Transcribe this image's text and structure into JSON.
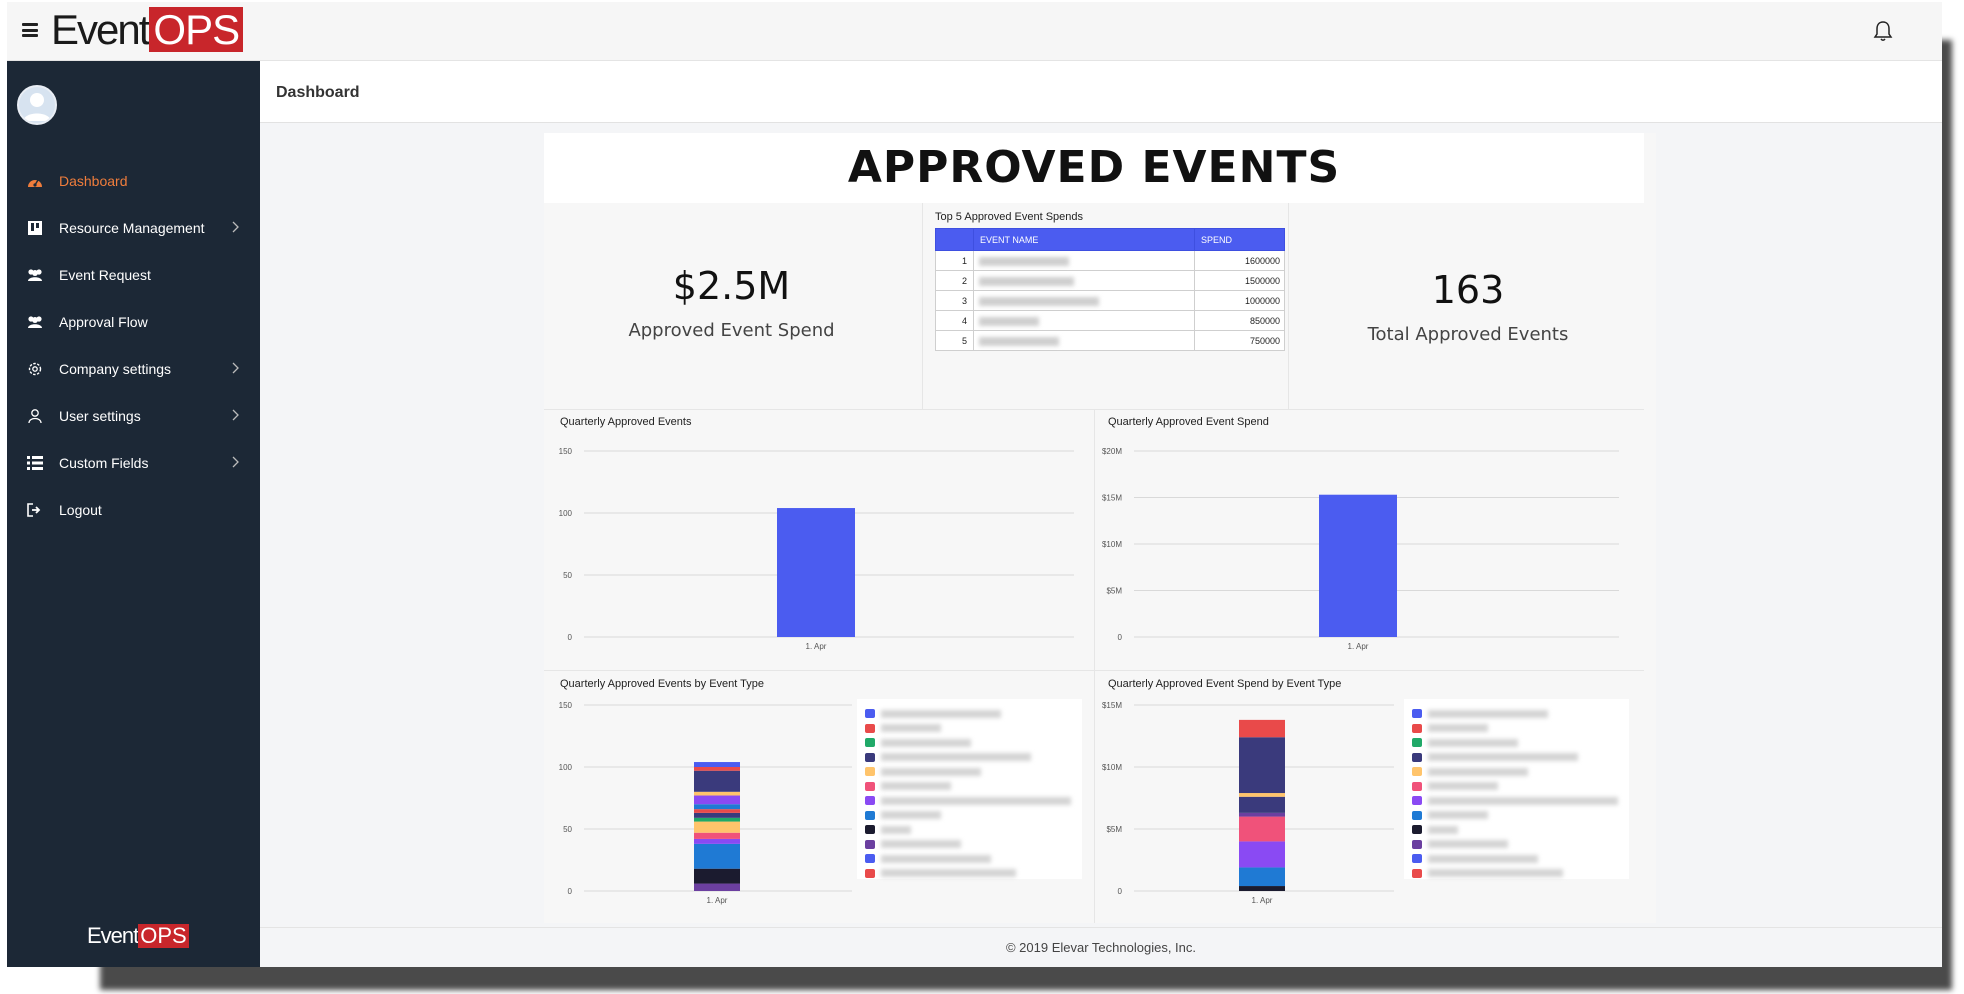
{
  "app": {
    "logo_event": "Event",
    "logo_ops": "OPS",
    "page_title": "Dashboard",
    "footer": "© 2019 Elevar Technologies, Inc."
  },
  "sidebar": {
    "items": [
      {
        "label": "Dashboard",
        "icon": "dashboard-icon",
        "active": true,
        "chevron": false
      },
      {
        "label": "Resource Management",
        "icon": "board-icon",
        "active": false,
        "chevron": true
      },
      {
        "label": "Event Request",
        "icon": "users-icon",
        "active": false,
        "chevron": false
      },
      {
        "label": "Approval Flow",
        "icon": "users-icon",
        "active": false,
        "chevron": false
      },
      {
        "label": "Company settings",
        "icon": "gear-icon",
        "active": false,
        "chevron": true
      },
      {
        "label": "User settings",
        "icon": "user-icon",
        "active": false,
        "chevron": true
      },
      {
        "label": "Custom Fields",
        "icon": "list-icon",
        "active": false,
        "chevron": true
      },
      {
        "label": "Logout",
        "icon": "logout-icon",
        "active": false,
        "chevron": false
      }
    ]
  },
  "report": {
    "title": "APPROVED EVENTS",
    "kpi_spend": {
      "value": "$2.5M",
      "label": "Approved Event Spend"
    },
    "kpi_total": {
      "value": "163",
      "label": "Total Approved Events"
    },
    "top5": {
      "caption": "Top 5 Approved Event Spends",
      "headers": [
        "",
        "EVENT NAME",
        "SPEND"
      ],
      "rows": [
        {
          "rank": "1",
          "spend": "1600000"
        },
        {
          "rank": "2",
          "spend": "1500000"
        },
        {
          "rank": "3",
          "spend": "1000000"
        },
        {
          "rank": "4",
          "spend": "850000"
        },
        {
          "rank": "5",
          "spend": "750000"
        }
      ]
    },
    "colors": {
      "accent": "#4b5cf0",
      "active_nav": "#ef7d3c",
      "sidebar_bg": "#1c2836",
      "logo_red": "#c8262b"
    }
  },
  "chart_data": [
    {
      "type": "bar",
      "title": "Quarterly Approved Events",
      "categories": [
        "1. Apr"
      ],
      "values": [
        104
      ],
      "ylim": [
        0,
        150
      ],
      "yticks": [
        "0",
        "50",
        "100",
        "150"
      ],
      "color": "#4b5cf0",
      "grid": true
    },
    {
      "type": "bar",
      "title": "Quarterly Approved Event Spend",
      "categories": [
        "1. Apr"
      ],
      "values": [
        15.3
      ],
      "ylim": [
        0,
        20
      ],
      "yticks": [
        "0",
        "$5M",
        "$10M",
        "$15M",
        "$20M"
      ],
      "color": "#4b5cf0",
      "grid": true
    },
    {
      "type": "bar",
      "title": "Quarterly Approved Events by Event Type",
      "stacked": true,
      "categories": [
        "1. Apr"
      ],
      "ylim": [
        0,
        150
      ],
      "yticks": [
        "0",
        "50",
        "100",
        "150"
      ],
      "grid": true,
      "legend": "right",
      "segments": [
        {
          "value": 6,
          "color": "#6b3fa0"
        },
        {
          "value": 12,
          "color": "#1b1b2f"
        },
        {
          "value": 20,
          "color": "#1f7ad4"
        },
        {
          "value": 4,
          "color": "#8a4af3"
        },
        {
          "value": 5,
          "color": "#f0527a"
        },
        {
          "value": 9,
          "color": "#ffc46b"
        },
        {
          "value": 3,
          "color": "#20a968"
        },
        {
          "value": 4,
          "color": "#3a3a7c"
        },
        {
          "value": 3,
          "color": "#e94a4a"
        },
        {
          "value": 4,
          "color": "#1f7ad4"
        },
        {
          "value": 7,
          "color": "#8a4af3"
        },
        {
          "value": 3,
          "color": "#ffc46b"
        },
        {
          "value": 17,
          "color": "#3a3a7c"
        },
        {
          "value": 3,
          "color": "#e94a4a"
        },
        {
          "value": 4,
          "color": "#4b5cf0"
        }
      ],
      "legend_colors": [
        "#4b5cf0",
        "#e94a4a",
        "#20a968",
        "#3a3a7c",
        "#ffc46b",
        "#f0527a",
        "#8a4af3",
        "#1f7ad4",
        "#1b1b2f",
        "#6b3fa0",
        "#4b5cf0",
        "#e94a4a"
      ]
    },
    {
      "type": "bar",
      "title": "Quarterly Approved Event Spend by Event Type",
      "stacked": true,
      "categories": [
        "1. Apr"
      ],
      "ylim": [
        0,
        15
      ],
      "yticks": [
        "0",
        "$5M",
        "$10M",
        "$15M"
      ],
      "grid": true,
      "legend": "right",
      "segments": [
        {
          "value": 0.4,
          "color": "#1b1b2f"
        },
        {
          "value": 1.5,
          "color": "#1f7ad4"
        },
        {
          "value": 2.1,
          "color": "#8a4af3"
        },
        {
          "value": 2.0,
          "color": "#f0527a"
        },
        {
          "value": 0.3,
          "color": "#6b3fa0"
        },
        {
          "value": 1.3,
          "color": "#3a3a7c"
        },
        {
          "value": 0.3,
          "color": "#ffc46b"
        },
        {
          "value": 4.5,
          "color": "#3a3a7c"
        },
        {
          "value": 1.4,
          "color": "#e94a4a"
        }
      ],
      "legend_colors": [
        "#4b5cf0",
        "#e94a4a",
        "#20a968",
        "#3a3a7c",
        "#ffc46b",
        "#f0527a",
        "#8a4af3",
        "#1f7ad4",
        "#1b1b2f",
        "#6b3fa0",
        "#4b5cf0",
        "#e94a4a"
      ]
    }
  ]
}
